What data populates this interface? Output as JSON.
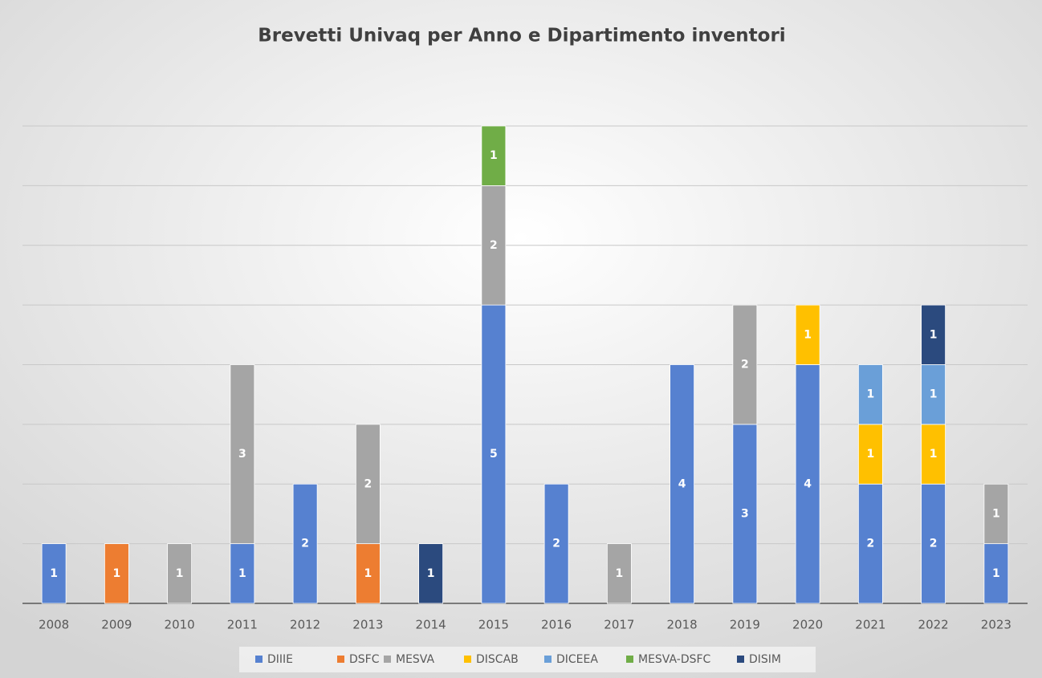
{
  "chart_data": {
    "type": "bar",
    "stacked": true,
    "title": "Brevetti Univaq per Anno e Dipartimento inventori",
    "categories": [
      "2008",
      "2009",
      "2010",
      "2011",
      "2012",
      "2013",
      "2014",
      "2015",
      "2016",
      "2017",
      "2018",
      "2019",
      "2020",
      "2021",
      "2022",
      "2023"
    ],
    "series": [
      {
        "name": "DIIIE",
        "color": "#5681d0",
        "values": [
          1,
          null,
          null,
          1,
          2,
          null,
          null,
          5,
          2,
          null,
          4,
          3,
          4,
          2,
          2,
          1
        ]
      },
      {
        "name": "DSFC",
        "color": "#ed7d31",
        "values": [
          null,
          1,
          null,
          null,
          null,
          1,
          null,
          null,
          null,
          null,
          null,
          null,
          null,
          null,
          null,
          null
        ]
      },
      {
        "name": "MESVA",
        "color": "#a5a5a5",
        "values": [
          null,
          null,
          1,
          3,
          null,
          2,
          null,
          2,
          null,
          1,
          null,
          2,
          null,
          null,
          null,
          1
        ]
      },
      {
        "name": "DISCAB",
        "color": "#ffc000",
        "values": [
          null,
          null,
          null,
          null,
          null,
          null,
          null,
          null,
          null,
          null,
          null,
          null,
          1,
          1,
          1,
          null
        ]
      },
      {
        "name": "DICEEA",
        "color": "#6a9fd8",
        "values": [
          null,
          null,
          null,
          null,
          null,
          null,
          null,
          null,
          null,
          null,
          null,
          null,
          null,
          1,
          1,
          null
        ]
      },
      {
        "name": "MESVA-DSFC",
        "color": "#70ad47",
        "values": [
          null,
          null,
          null,
          null,
          null,
          null,
          null,
          1,
          null,
          null,
          null,
          null,
          null,
          null,
          null,
          null
        ]
      },
      {
        "name": "DISIM",
        "color": "#2b4a7e",
        "values": [
          null,
          null,
          null,
          null,
          null,
          null,
          1,
          null,
          null,
          null,
          null,
          null,
          null,
          null,
          1,
          null
        ]
      }
    ],
    "ylim": [
      0,
      8
    ],
    "yticks": [
      0,
      1,
      2,
      3,
      4,
      5,
      6,
      7,
      8
    ],
    "grid": true,
    "legend": "bottom"
  }
}
